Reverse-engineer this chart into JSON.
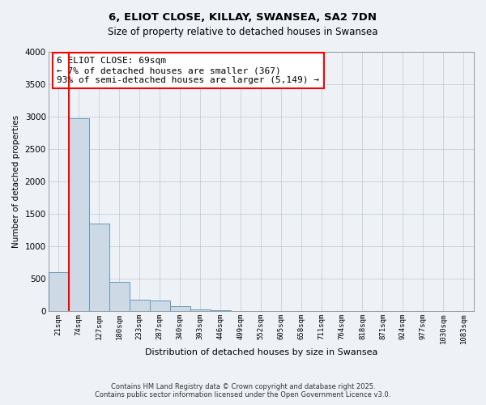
{
  "title": "6, ELIOT CLOSE, KILLAY, SWANSEA, SA2 7DN",
  "subtitle": "Size of property relative to detached houses in Swansea",
  "xlabel": "Distribution of detached houses by size in Swansea",
  "ylabel": "Number of detached properties",
  "bar_color": "#cdd9e5",
  "bar_edge_color": "#6699bb",
  "annotation_title": "6 ELIOT CLOSE: 69sqm",
  "annotation_line1": "← 7% of detached houses are smaller (367)",
  "annotation_line2": "93% of semi-detached houses are larger (5,149) →",
  "categories": [
    "21sqm",
    "74sqm",
    "127sqm",
    "180sqm",
    "233sqm",
    "287sqm",
    "340sqm",
    "393sqm",
    "446sqm",
    "499sqm",
    "552sqm",
    "605sqm",
    "658sqm",
    "711sqm",
    "764sqm",
    "818sqm",
    "871sqm",
    "924sqm",
    "977sqm",
    "1030sqm",
    "1083sqm"
  ],
  "values": [
    600,
    2970,
    1350,
    450,
    175,
    160,
    80,
    25,
    10,
    5,
    3,
    2,
    1,
    1,
    1,
    0,
    0,
    0,
    0,
    0,
    0
  ],
  "ylim": [
    0,
    4000
  ],
  "yticks": [
    0,
    500,
    1000,
    1500,
    2000,
    2500,
    3000,
    3500,
    4000
  ],
  "footer_line1": "Contains HM Land Registry data © Crown copyright and database right 2025.",
  "footer_line2": "Contains public sector information licensed under the Open Government Licence v3.0.",
  "background_color": "#eef2f7",
  "plot_bg_color": "#eef2f7",
  "grid_color": "#b0bfcc"
}
